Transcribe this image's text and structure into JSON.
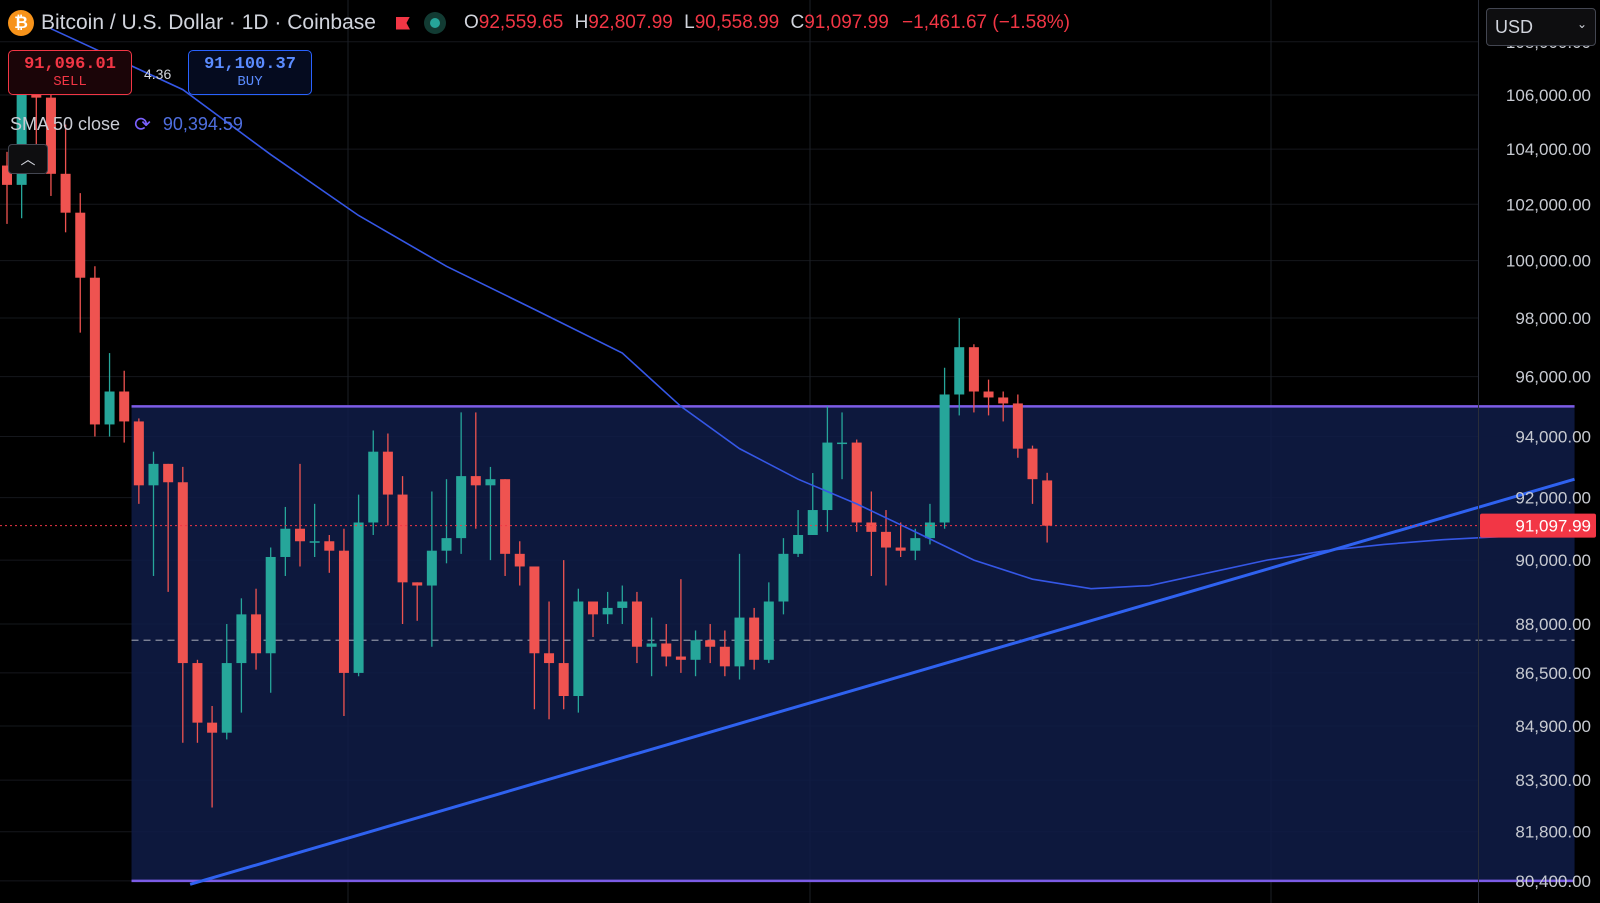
{
  "header": {
    "coin_glyph": "₿",
    "title": "Bitcoin / U.S. Dollar · 1D · Coinbase",
    "open_label": "O",
    "open": "92,559.65",
    "high_label": "H",
    "high": "92,807.99",
    "low_label": "L",
    "low": "90,558.99",
    "close_label": "C",
    "close": "91,097.99",
    "change": "−1,461.67 (−1.58%)"
  },
  "trade": {
    "sell_price": "91,096.01",
    "sell_label": "SELL",
    "spread": "4.36",
    "buy_price": "91,100.37",
    "buy_label": "BUY"
  },
  "indicator": {
    "label": "SMA 50 close",
    "value": "90,394.59",
    "icon": "refresh-icon"
  },
  "currency_select": {
    "value": "USD"
  },
  "colors": {
    "up": "#26a69a",
    "down": "#ef5350",
    "range_fill": "#0f1c48",
    "range_border": "#7c5ce6",
    "trendline": "#2f62f0",
    "sma": "#3557e6",
    "last_price": "#f23645"
  },
  "chart_data": {
    "type": "candlestick",
    "y_scale": "log",
    "ylim": [
      80000,
      109600
    ],
    "y_ticks": [
      80400,
      81800,
      83300,
      84900,
      86500,
      88000,
      90000,
      92000,
      94000,
      96000,
      98000,
      100000,
      102000,
      104000,
      106000,
      108000
    ],
    "y_tick_labels": [
      "80,400.00",
      "81,800.00",
      "83,300.00",
      "84,900.00",
      "86,500.00",
      "88,000.00",
      "90,000.00",
      "92,000.00",
      "94,000.00",
      "96,000.00",
      "98,000.00",
      "100,000.00",
      "102,000.00",
      "104,000.00",
      "106,000.00",
      "108,000.00"
    ],
    "last_price": 91097.99,
    "last_price_label": "91,097.99",
    "candles": [
      [
        103400,
        102700,
        103900,
        101300
      ],
      [
        102700,
        106000,
        106500,
        101500
      ],
      [
        106000,
        105900,
        106600,
        103600
      ],
      [
        105900,
        103100,
        106900,
        102300
      ],
      [
        103100,
        101700,
        104900,
        101000
      ],
      [
        101700,
        99400,
        102400,
        97500
      ],
      [
        99400,
        94400,
        99800,
        94000
      ],
      [
        94400,
        95500,
        96800,
        94000
      ],
      [
        95500,
        94500,
        96200,
        93800
      ],
      [
        94500,
        92400,
        94600,
        91800
      ],
      [
        92400,
        93100,
        93500,
        89500
      ],
      [
        93100,
        92500,
        93100,
        89000
      ],
      [
        92500,
        86800,
        93000,
        84400
      ],
      [
        86800,
        85000,
        86900,
        84400
      ],
      [
        85000,
        84700,
        85500,
        82500
      ],
      [
        84700,
        86800,
        88000,
        84500
      ],
      [
        86800,
        88300,
        88800,
        85300
      ],
      [
        88300,
        87100,
        89100,
        86600
      ],
      [
        87100,
        90100,
        90400,
        85900
      ],
      [
        90100,
        91000,
        91700,
        89500
      ],
      [
        91000,
        90600,
        93100,
        89800
      ],
      [
        90600,
        90600,
        91800,
        90100
      ],
      [
        90600,
        90300,
        90800,
        89600
      ],
      [
        90300,
        86500,
        91000,
        85200
      ],
      [
        86500,
        91200,
        92100,
        86400
      ],
      [
        91200,
        93500,
        94200,
        90800
      ],
      [
        93500,
        92100,
        94100,
        91100
      ],
      [
        92100,
        89300,
        92700,
        88000
      ],
      [
        89300,
        89200,
        89300,
        88100
      ],
      [
        89200,
        90300,
        92200,
        87300
      ],
      [
        90300,
        90700,
        92600,
        89900
      ],
      [
        90700,
        92700,
        94800,
        90200
      ],
      [
        92700,
        92400,
        94800,
        91000
      ],
      [
        92400,
        92600,
        93000,
        90000
      ],
      [
        92600,
        90200,
        92600,
        89500
      ],
      [
        90200,
        89800,
        90600,
        89200
      ],
      [
        89800,
        87100,
        89800,
        85400
      ],
      [
        87100,
        86800,
        88700,
        85100
      ],
      [
        86800,
        85800,
        90000,
        85400
      ],
      [
        85800,
        88700,
        89100,
        85300
      ],
      [
        88700,
        88300,
        88500,
        87600
      ],
      [
        88300,
        88500,
        89000,
        88000
      ],
      [
        88500,
        88700,
        89200,
        88000
      ],
      [
        88700,
        87300,
        89000,
        86800
      ],
      [
        87300,
        87400,
        88200,
        86400
      ],
      [
        87400,
        87000,
        88000,
        86700
      ],
      [
        87000,
        86900,
        89400,
        86500
      ],
      [
        86900,
        87500,
        87800,
        86400
      ],
      [
        87500,
        87300,
        88000,
        86800
      ],
      [
        87300,
        86700,
        87800,
        86400
      ],
      [
        86700,
        88200,
        90200,
        86300
      ],
      [
        88200,
        86900,
        88500,
        86600
      ],
      [
        86900,
        88700,
        89300,
        86800
      ],
      [
        88700,
        90200,
        90700,
        88300
      ],
      [
        90200,
        90800,
        91600,
        90100
      ],
      [
        90800,
        91600,
        92800,
        90800
      ],
      [
        91600,
        93800,
        95000,
        90900
      ],
      [
        93800,
        93800,
        94800,
        92600
      ],
      [
        93800,
        91200,
        93900,
        90900
      ],
      [
        91200,
        90900,
        92200,
        89500
      ],
      [
        90900,
        90400,
        91600,
        89200
      ],
      [
        90400,
        90300,
        91200,
        90100
      ],
      [
        90300,
        90700,
        91000,
        90000
      ],
      [
        90700,
        91200,
        91800,
        90500
      ],
      [
        91200,
        95400,
        96300,
        91000
      ],
      [
        95400,
        97000,
        98000,
        94700
      ],
      [
        97000,
        95500,
        97100,
        94800
      ],
      [
        95500,
        95300,
        95900,
        94700
      ],
      [
        95300,
        95100,
        95500,
        94500
      ],
      [
        95100,
        93600,
        95400,
        93300
      ],
      [
        93600,
        92600,
        93700,
        91800
      ],
      [
        92559.65,
        91097.99,
        92807.99,
        90558.99
      ]
    ],
    "sma50": [
      [
        3,
        108500
      ],
      [
        12,
        106200
      ],
      [
        18,
        103800
      ],
      [
        24,
        101600
      ],
      [
        30,
        99800
      ],
      [
        36,
        98300
      ],
      [
        42,
        96800
      ],
      [
        46,
        95000
      ],
      [
        50,
        93600
      ],
      [
        54,
        92600
      ],
      [
        58,
        91800
      ],
      [
        62,
        90900
      ],
      [
        66,
        90000
      ],
      [
        70,
        89400
      ],
      [
        74,
        89100
      ],
      [
        78,
        89200
      ],
      [
        82,
        89600
      ],
      [
        86,
        90000
      ],
      [
        90,
        90300
      ],
      [
        94,
        90500
      ],
      [
        98,
        90650
      ],
      [
        102,
        90750
      ]
    ],
    "range_box": {
      "top": 95000,
      "bottom": 80400,
      "mid": 87500,
      "from_index": 8.5,
      "to_index": 107
    },
    "trendline": {
      "x1": 12.5,
      "y1": 80300,
      "x2": 107,
      "y2": 92600
    }
  }
}
